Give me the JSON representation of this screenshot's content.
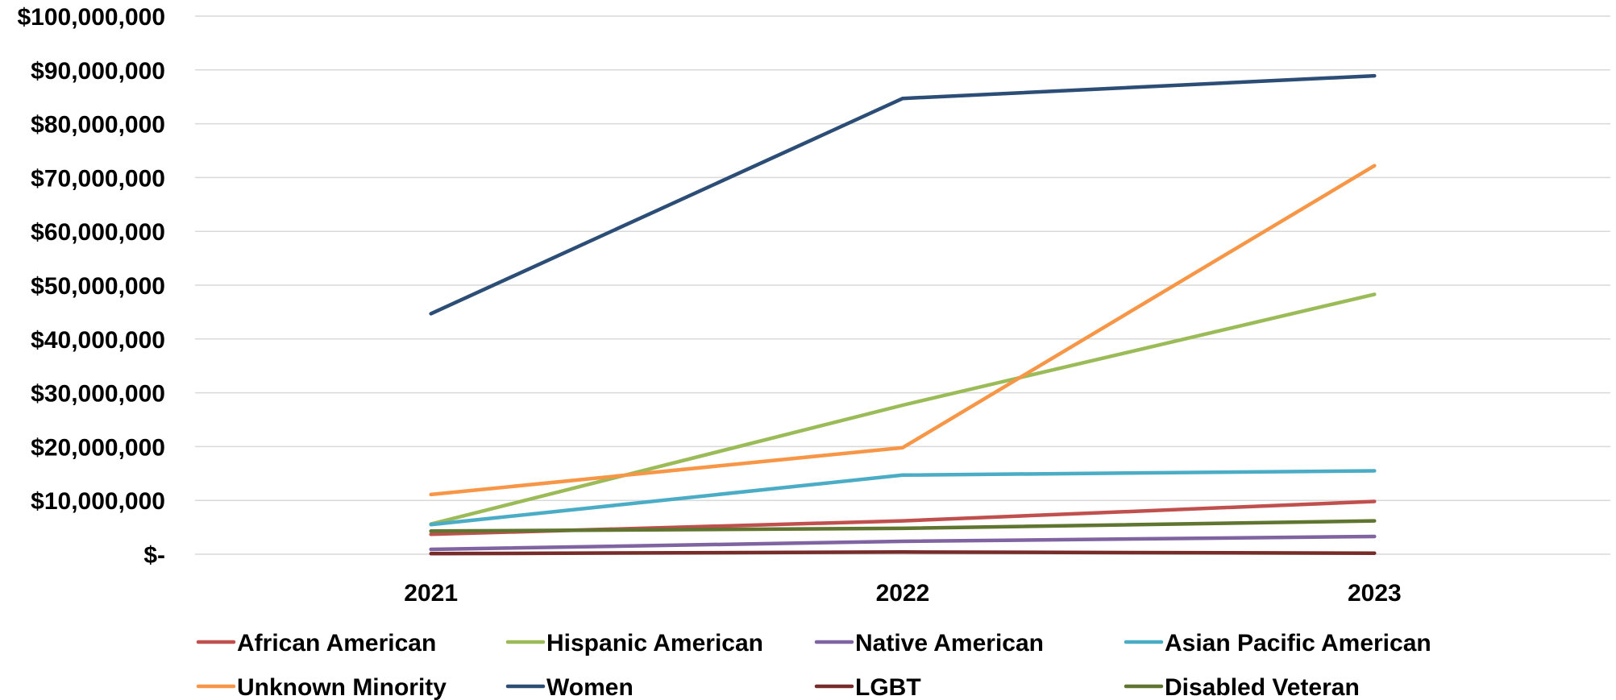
{
  "chart_data": {
    "type": "line",
    "x": [
      "2021",
      "2022",
      "2023"
    ],
    "ylim": [
      0,
      100000000
    ],
    "yticks": [
      0,
      10000000,
      20000000,
      30000000,
      40000000,
      50000000,
      60000000,
      70000000,
      80000000,
      90000000,
      100000000
    ],
    "ytick_labels": [
      "$-",
      "$10,000,000",
      "$20,000,000",
      "$30,000,000",
      "$40,000,000",
      "$50,000,000",
      "$60,000,000",
      "$70,000,000",
      "$80,000,000",
      "$90,000,000",
      "$100,000,000"
    ],
    "grid": true,
    "legend_position": "bottom",
    "series": [
      {
        "name": "African American",
        "color": "#c0504d",
        "values": [
          3700000,
          6200000,
          9800000
        ]
      },
      {
        "name": "Hispanic American",
        "color": "#9bbb59",
        "values": [
          5600000,
          27700000,
          48300000
        ]
      },
      {
        "name": "Native American",
        "color": "#8064a2",
        "values": [
          900000,
          2400000,
          3300000
        ]
      },
      {
        "name": "Asian Pacific American",
        "color": "#4bacc6",
        "values": [
          5500000,
          14700000,
          15500000
        ]
      },
      {
        "name": "Unknown Minority",
        "color": "#f79646",
        "values": [
          11100000,
          19800000,
          72200000
        ]
      },
      {
        "name": "Women",
        "color": "#2c4d75",
        "values": [
          44700000,
          84700000,
          88900000
        ]
      },
      {
        "name": "LGBT",
        "color": "#772c2a",
        "values": [
          100000,
          400000,
          200000
        ]
      },
      {
        "name": "Disabled Veteran",
        "color": "#5f7530",
        "values": [
          4300000,
          4800000,
          6200000
        ]
      }
    ]
  }
}
